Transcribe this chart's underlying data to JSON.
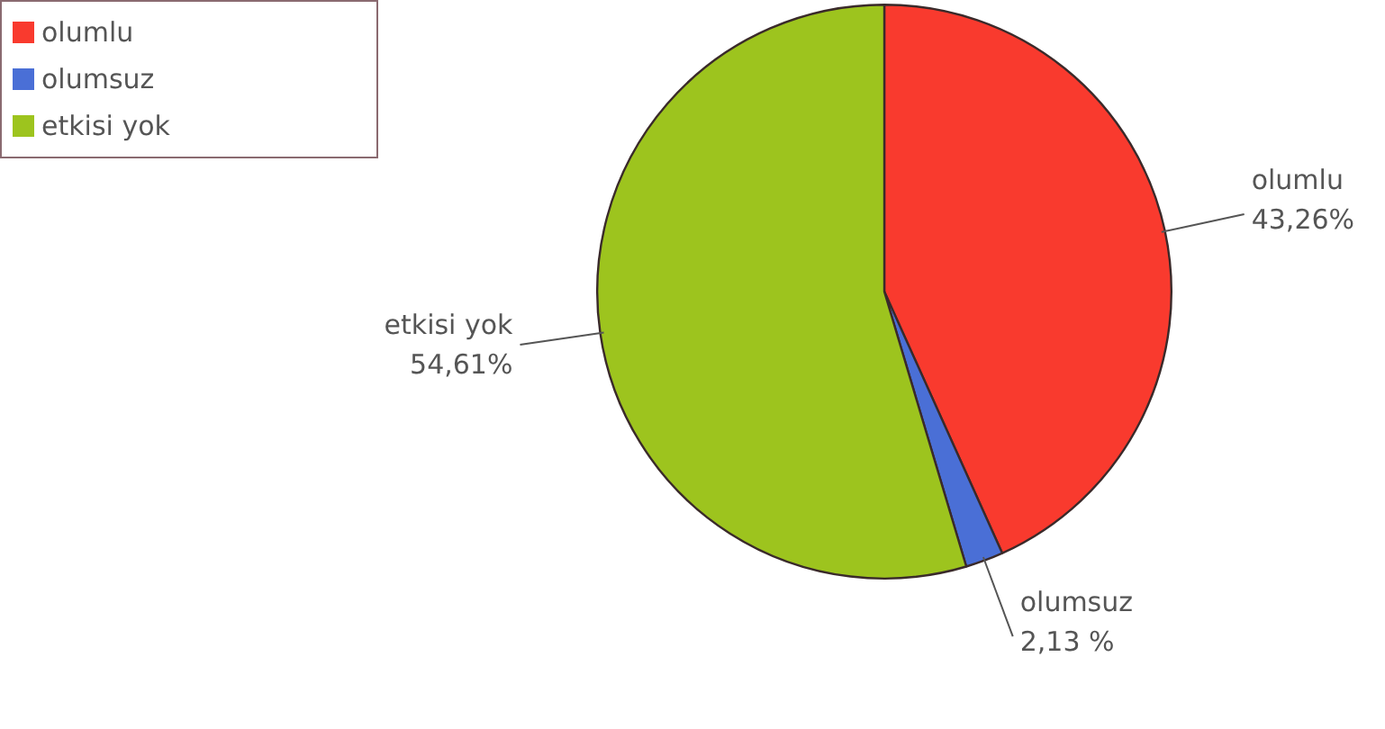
{
  "chart_data": {
    "type": "pie",
    "categories": [
      "olumlu",
      "olumsuz",
      "etkisi yok"
    ],
    "values": [
      43.26,
      2.13,
      54.61
    ],
    "value_labels": [
      "43,26%",
      "2,13 %",
      "54,61%"
    ],
    "colors": [
      "#f93a2e",
      "#4a6fd6",
      "#9dc41e"
    ],
    "legend": "top left"
  }
}
